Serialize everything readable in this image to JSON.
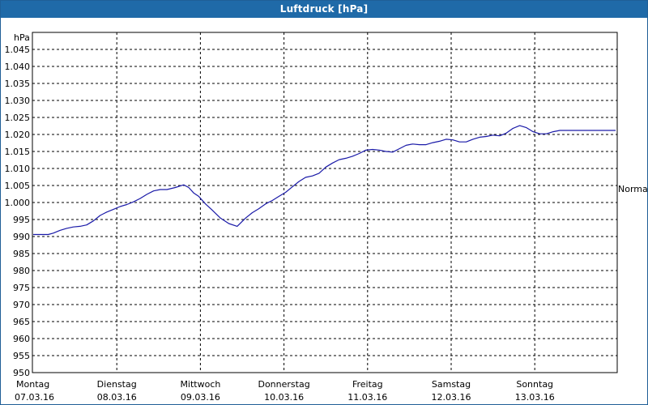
{
  "window": {
    "title": "Luftdruck [hPa]"
  },
  "chart_data": {
    "type": "line",
    "title": "Luftdruck [hPa]",
    "ylabel": "hPa",
    "ylim": [
      950,
      1050
    ],
    "yticks": [
      950,
      955,
      960,
      965,
      970,
      975,
      980,
      985,
      990,
      995,
      1000,
      1005,
      1010,
      1015,
      1020,
      1025,
      1030,
      1035,
      1040,
      1045
    ],
    "ytick_labels": [
      "950",
      "955",
      "960",
      "965",
      "970",
      "975",
      "980",
      "985",
      "990",
      "995",
      "1.000",
      "1.005",
      "1.010",
      "1.015",
      "1.020",
      "1.025",
      "1.030",
      "1.035",
      "1.040",
      "1.045"
    ],
    "x_days": [
      {
        "day": "Montag",
        "date": "07.03.16"
      },
      {
        "day": "Dienstag",
        "date": "08.03.16"
      },
      {
        "day": "Mittwoch",
        "date": "09.03.16"
      },
      {
        "day": "Donnerstag",
        "date": "10.03.16"
      },
      {
        "day": "Freitag",
        "date": "11.03.16"
      },
      {
        "day": "Samstag",
        "date": "12.03.16"
      },
      {
        "day": "Sonntag",
        "date": "13.03.16"
      }
    ],
    "reference_line": {
      "label": "Normal",
      "value": 1004.8
    },
    "grid": true,
    "series": [
      {
        "color": "#1a1aa8",
        "x_days": [
          0.0,
          0.1,
          0.18,
          0.24,
          0.32,
          0.4,
          0.48,
          0.56,
          0.64,
          0.72,
          0.8,
          0.88,
          0.96,
          1.04,
          1.12,
          1.2,
          1.28,
          1.36,
          1.44,
          1.52,
          1.6,
          1.7,
          1.8,
          1.86,
          1.92,
          1.98,
          2.06,
          2.14,
          2.24,
          2.34,
          2.44,
          2.54,
          2.62,
          2.7,
          2.78,
          2.86,
          2.94,
          3.02,
          3.1,
          3.18,
          3.26,
          3.34,
          3.42,
          3.5,
          3.58,
          3.66,
          3.74,
          3.82,
          3.9,
          3.98,
          4.06,
          4.14,
          4.22,
          4.3,
          4.38,
          4.46,
          4.54,
          4.62,
          4.7,
          4.78,
          4.86,
          4.94,
          5.02,
          5.1,
          5.18,
          5.26,
          5.34,
          5.42,
          5.5,
          5.58,
          5.66,
          5.74,
          5.82,
          5.9,
          5.98,
          6.06,
          6.14,
          6.22,
          6.3,
          6.38,
          6.46,
          6.54,
          6.62,
          6.7,
          6.78,
          6.86,
          6.94,
          7.02
        ],
        "values": [
          990.6,
          990.6,
          990.6,
          991.0,
          991.8,
          992.4,
          992.8,
          993.0,
          993.4,
          994.6,
          996.2,
          997.2,
          998.0,
          998.8,
          999.4,
          1000.2,
          1001.2,
          1002.4,
          1003.4,
          1003.8,
          1003.8,
          1004.4,
          1005.2,
          1004.4,
          1002.8,
          1001.8,
          999.6,
          997.8,
          995.4,
          993.8,
          993.0,
          995.4,
          997.0,
          998.2,
          999.6,
          1000.6,
          1001.8,
          1003.0,
          1004.6,
          1006.2,
          1007.4,
          1007.8,
          1008.6,
          1010.4,
          1011.6,
          1012.6,
          1013.0,
          1013.6,
          1014.4,
          1015.4,
          1015.6,
          1015.4,
          1015.0,
          1014.8,
          1015.8,
          1016.8,
          1017.2,
          1017.0,
          1017.0,
          1017.6,
          1018.0,
          1018.6,
          1018.4,
          1017.8,
          1017.8,
          1018.6,
          1019.2,
          1019.4,
          1019.8,
          1019.6,
          1020.4,
          1021.8,
          1022.6,
          1022.0,
          1020.8,
          1020.2,
          1020.2,
          1020.8,
          1021.2,
          1021.2,
          1021.2,
          1021.2,
          1021.2,
          1021.2,
          1021.2,
          1021.2,
          1021.2,
          1021.2
        ]
      }
    ]
  }
}
